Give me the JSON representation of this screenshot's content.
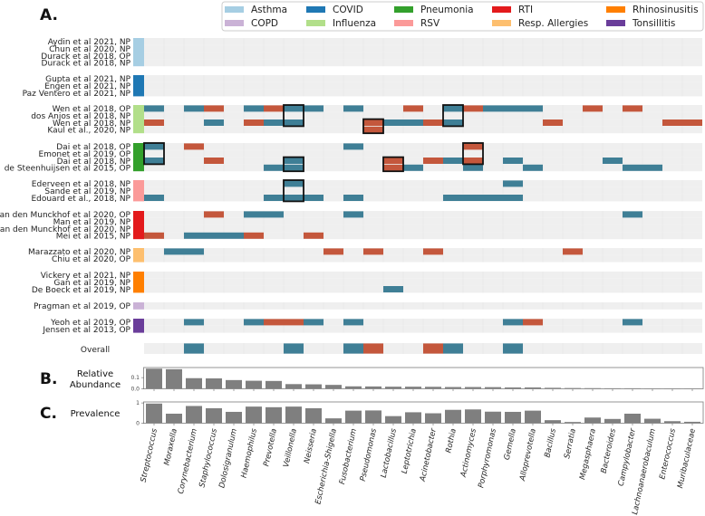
{
  "chart_data": [
    {
      "type": "heatmap",
      "panel_label": "A.",
      "cell_colors": {
        "pos": "#3f7f96",
        "neg": "#c4573c",
        "empty": "#efefef"
      },
      "legend": [
        {
          "label": "Asthma",
          "color": "#a6cee3"
        },
        {
          "label": "COPD",
          "color": "#cab2d6"
        },
        {
          "label": "COVID",
          "color": "#1f78b4"
        },
        {
          "label": "Influenza",
          "color": "#b2df8a"
        },
        {
          "label": "Pneumonia",
          "color": "#33a02c"
        },
        {
          "label": "RSV",
          "color": "#fb9a99"
        },
        {
          "label": "RTI",
          "color": "#e31a1c"
        },
        {
          "label": "Resp. Allergies",
          "color": "#fdbf6f"
        },
        {
          "label": "Rhinosinusitis",
          "color": "#ff7f00"
        },
        {
          "label": "Tonsillitis",
          "color": "#6a3d9a"
        }
      ],
      "columns": [
        "Streptococcus",
        "Moraxella",
        "Corynebacterium",
        "Staphylococcus",
        "Dolosigranulum",
        "Haemophilus",
        "Prevotella",
        "Veillonella",
        "Neisseria",
        "Escherichia-Shigella",
        "Fusobacterium",
        "Pseudomonas",
        "Lactobacillus",
        "Leptotrichia",
        "Acinetobacter",
        "Rothia",
        "Actinomyces",
        "Porphyromonas",
        "Gemella",
        "Alloprevotella",
        "Bacillus",
        "Serratia",
        "Megasphaera",
        "Bacteroides",
        "Campylobacter",
        "Lachnoanaerobaculum",
        "Enterococcus",
        "Muribaculaceae"
      ],
      "groups": [
        {
          "disease": "Asthma",
          "color": "#a6cee3",
          "rows": [
            {
              "label": "Aydin et al 2021, NP",
              "pos": [],
              "neg": []
            },
            {
              "label": "Chun et al 2020, NP",
              "pos": [],
              "neg": []
            },
            {
              "label": "Durack et al 2018, OP",
              "pos": [],
              "neg": []
            },
            {
              "label": "Durack et al 2018, NP",
              "pos": [],
              "neg": []
            }
          ],
          "boxes": []
        },
        {
          "disease": "COVID",
          "color": "#1f78b4",
          "rows": [
            {
              "label": "Gupta et al 2021, NP",
              "pos": [],
              "neg": []
            },
            {
              "label": "Engen et al 2021, NP",
              "pos": [],
              "neg": []
            },
            {
              "label": "Paz Ventero et al 2021, NP",
              "pos": [],
              "neg": []
            }
          ],
          "boxes": []
        },
        {
          "disease": "Influenza",
          "color": "#b2df8a",
          "rows": [
            {
              "label": "Wen et al 2018, OP",
              "pos": [
                0,
                2,
                5,
                7,
                8,
                10,
                15,
                17,
                18,
                19
              ],
              "neg": [
                3,
                6,
                13,
                16,
                22,
                24
              ]
            },
            {
              "label": "dos Anjos et al 2018, NP",
              "pos": [],
              "neg": []
            },
            {
              "label": "Wen et al 2018, NP",
              "pos": [
                3,
                6,
                7,
                12,
                13,
                15
              ],
              "neg": [
                0,
                5,
                11,
                14,
                20,
                26,
                27
              ]
            },
            {
              "label": "Kaul et al., 2020, NP",
              "pos": [],
              "neg": [
                11
              ]
            }
          ],
          "boxes": [
            {
              "col": 7,
              "rows": [
                0,
                2
              ]
            },
            {
              "col": 15,
              "rows": [
                0,
                2
              ]
            },
            {
              "col": 11,
              "rows": [
                2,
                3
              ]
            }
          ]
        },
        {
          "disease": "Pneumonia",
          "color": "#33a02c",
          "rows": [
            {
              "label": "Dai et al 2018, OP",
              "pos": [
                0,
                10
              ],
              "neg": [
                2,
                16
              ]
            },
            {
              "label": "Emonet et al 2019, OP",
              "pos": [],
              "neg": []
            },
            {
              "label": "Dai et al 2018, NP",
              "pos": [
                0,
                7,
                15,
                18,
                23
              ],
              "neg": [
                3,
                12,
                14,
                16
              ]
            },
            {
              "label": "de Steenhuijsen et al 2015, OP",
              "pos": [
                6,
                7,
                13,
                16,
                19,
                24,
                25
              ],
              "neg": [
                12
              ]
            }
          ],
          "boxes": [
            {
              "col": 0,
              "rows": [
                0,
                2
              ]
            },
            {
              "col": 7,
              "rows": [
                2,
                3
              ]
            },
            {
              "col": 12,
              "rows": [
                2,
                3
              ]
            },
            {
              "col": 16,
              "rows": [
                0,
                2
              ]
            }
          ]
        },
        {
          "disease": "RSV",
          "color": "#fb9a99",
          "rows": [
            {
              "label": "Ederveen et al 2018, NP",
              "pos": [
                7,
                18
              ],
              "neg": []
            },
            {
              "label": "Sande et al 2019, NP",
              "pos": [],
              "neg": []
            },
            {
              "label": "Edouard et al., 2018, NP",
              "pos": [
                0,
                6,
                7,
                8,
                10,
                15,
                16,
                17,
                18
              ],
              "neg": []
            }
          ],
          "boxes": [
            {
              "col": 7,
              "rows": [
                0,
                2
              ]
            }
          ]
        },
        {
          "disease": "RTI",
          "color": "#e31a1c",
          "rows": [
            {
              "label": "van den Munckhof et al 2020, OP",
              "pos": [
                5,
                6,
                10,
                24
              ],
              "neg": [
                3
              ]
            },
            {
              "label": "Man et al 2019, NP",
              "pos": [],
              "neg": []
            },
            {
              "label": "van den Munckhof et al 2020, NP",
              "pos": [],
              "neg": []
            },
            {
              "label": "Mei et al 2015, NP",
              "pos": [
                2,
                3,
                4
              ],
              "neg": [
                0,
                5,
                8
              ]
            }
          ],
          "boxes": []
        },
        {
          "disease": "Resp. Allergies",
          "color": "#fdbf6f",
          "rows": [
            {
              "label": "Marazzato et al 2020, NP",
              "pos": [
                1,
                2
              ],
              "neg": [
                9,
                11,
                14,
                21
              ]
            },
            {
              "label": "Chiu et al 2020, OP",
              "pos": [],
              "neg": []
            }
          ],
          "boxes": []
        },
        {
          "disease": "Rhinosinusitis",
          "color": "#ff7f00",
          "rows": [
            {
              "label": "Vickery et al 2021, NP",
              "pos": [],
              "neg": []
            },
            {
              "label": "Gan et al 2019, NP",
              "pos": [],
              "neg": []
            },
            {
              "label": "De Boeck et al 2019, NP",
              "pos": [
                12
              ],
              "neg": []
            }
          ],
          "boxes": []
        },
        {
          "disease": "COPD",
          "color": "#cab2d6",
          "rows": [
            {
              "label": "Pragman et al 2019, OP",
              "pos": [],
              "neg": []
            }
          ],
          "boxes": []
        },
        {
          "disease": "Tonsillitis",
          "color": "#6a3d9a",
          "rows": [
            {
              "label": "Yeoh et al 2019, OP",
              "pos": [
                2,
                5,
                8,
                10,
                18,
                24
              ],
              "neg": [
                6,
                7,
                19
              ]
            },
            {
              "label": "Jensen et al 2013, OP",
              "pos": [],
              "neg": []
            }
          ],
          "boxes": []
        }
      ],
      "overall": {
        "label": "Overall",
        "pos": [
          2,
          7,
          10,
          15,
          18
        ],
        "neg": [
          11,
          14
        ]
      }
    },
    {
      "type": "bar",
      "panel_label": "B.",
      "ylabel_lines": [
        "Relative",
        "Abundance"
      ],
      "yticks": [
        {
          "value": 0.0,
          "label": "0.0"
        },
        {
          "value": 0.1,
          "label": "0.1"
        }
      ],
      "ylim": [
        0,
        0.19
      ],
      "color": "#7f7f7f",
      "values": [
        0.18,
        0.175,
        0.095,
        0.093,
        0.078,
        0.072,
        0.07,
        0.042,
        0.04,
        0.035,
        0.022,
        0.021,
        0.019,
        0.019,
        0.018,
        0.016,
        0.016,
        0.015,
        0.012,
        0.012,
        0.009,
        0.007,
        0.006,
        0.005,
        0.005,
        0.004,
        0.004,
        0.003
      ]
    },
    {
      "type": "bar",
      "panel_label": "C.",
      "ylabel_lines": [
        "Prevalence"
      ],
      "yticks": [
        {
          "value": 0,
          "label": "0"
        },
        {
          "value": 1,
          "label": "1"
        }
      ],
      "ylim": [
        0,
        1.05
      ],
      "color": "#7f7f7f",
      "values": [
        0.97,
        0.47,
        0.85,
        0.74,
        0.56,
        0.82,
        0.79,
        0.82,
        0.74,
        0.24,
        0.62,
        0.63,
        0.35,
        0.54,
        0.49,
        0.66,
        0.68,
        0.57,
        0.56,
        0.62,
        0.15,
        0.06,
        0.28,
        0.21,
        0.47,
        0.22,
        0.1,
        0.07
      ]
    }
  ]
}
